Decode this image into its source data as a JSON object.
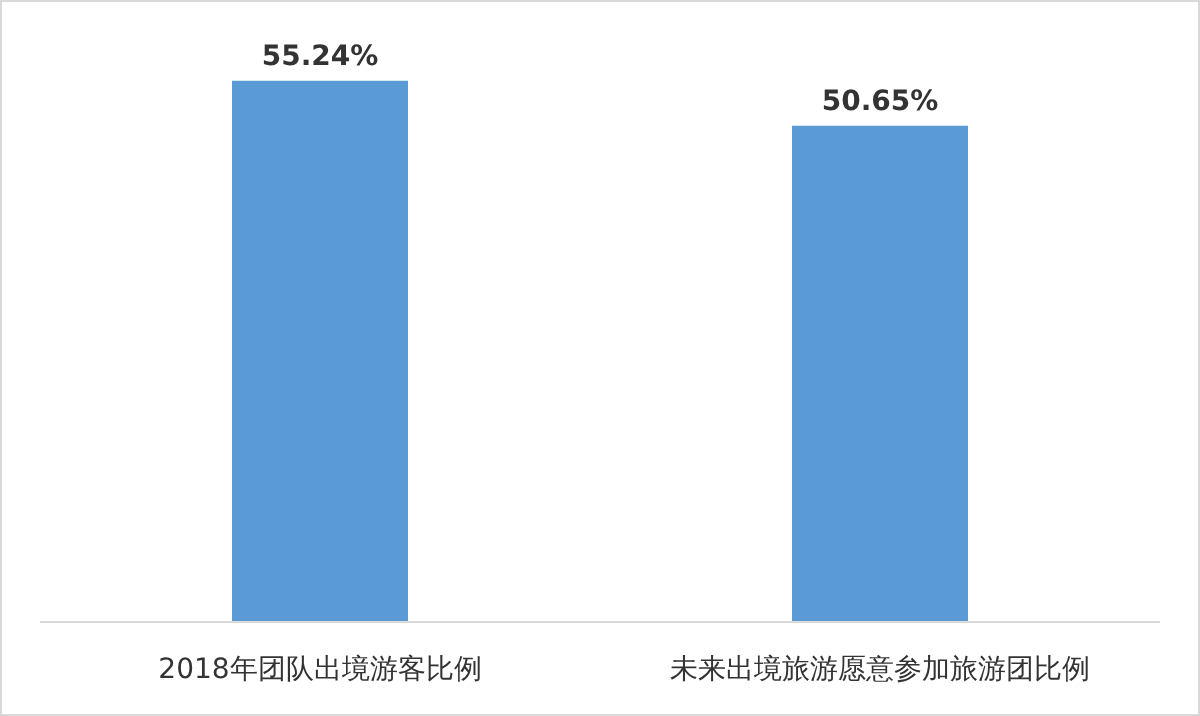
{
  "chart_data": {
    "type": "bar",
    "categories": [
      "2018年团队出境游客比例",
      "未来出境旅游愿意参加旅游团比例"
    ],
    "values": [
      55.24,
      50.65
    ],
    "color": "#5b9bd5",
    "value_labels": [
      "55.24%",
      "50.65%"
    ]
  }
}
